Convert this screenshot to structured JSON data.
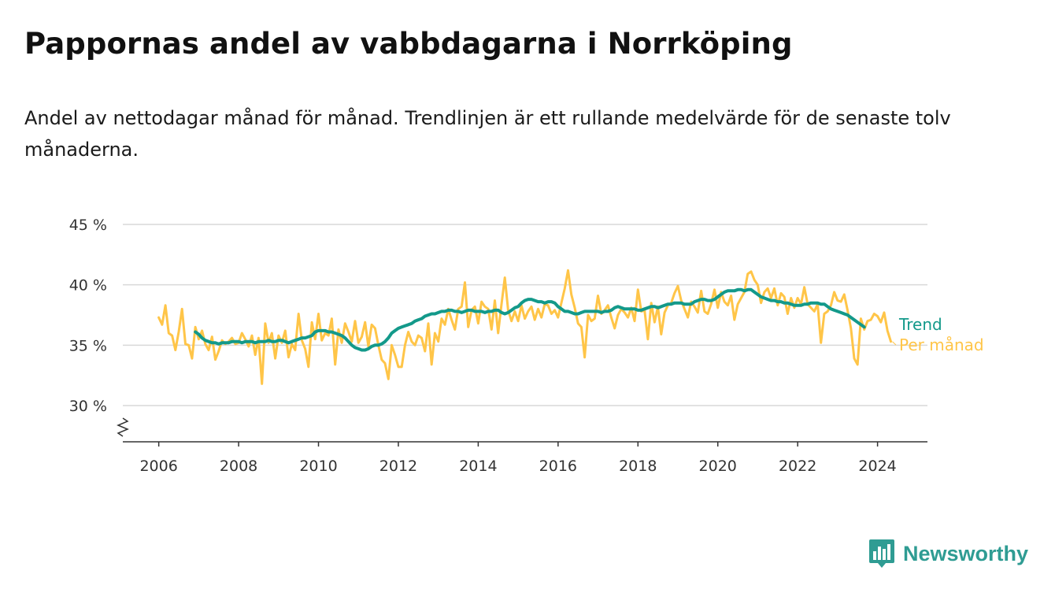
{
  "title": "Pappornas andel av vabbdagarna i Norrköping",
  "subtitle": "Andel av nettodagar månad för månad. Trendlinjen är ett rullande medelvärde för de senaste tolv månaderna.",
  "brand": {
    "name": "Newsworthy",
    "icon": "newsworthy-logo-icon"
  },
  "colors": {
    "trend": "#13998a",
    "monthly": "#ffc548",
    "grid": "#d9d9d9",
    "axis": "#333333"
  },
  "chart_data": {
    "type": "line",
    "title": "Pappornas andel av vabbdagarna i Norrköping",
    "subtitle": "Andel av nettodagar månad för månad. Trendlinjen är ett rullande medelvärde för de senaste tolv månaderna.",
    "xlabel": "",
    "ylabel": "",
    "x_ticks": [
      "2006",
      "2008",
      "2010",
      "2012",
      "2014",
      "2016",
      "2018",
      "2020",
      "2022",
      "2024"
    ],
    "y_ticks": [
      "30 %",
      "35 %",
      "40 %",
      "45 %"
    ],
    "xlim": [
      2005.1,
      2025.25
    ],
    "ylim": [
      27,
      45
    ],
    "y_axis_break": true,
    "grid": "horizontal",
    "legend": "inline-right",
    "series": [
      {
        "name": "Per månad",
        "key": "monthly",
        "x_start": 2006.0,
        "x_step": 0.08333,
        "values": [
          37.3,
          36.7,
          38.3,
          36.0,
          35.8,
          34.6,
          36.1,
          38.0,
          35.1,
          35.0,
          33.9,
          36.5,
          35.5,
          36.2,
          35.1,
          34.6,
          35.7,
          33.8,
          34.5,
          35.4,
          35.1,
          35.3,
          35.6,
          35.1,
          35.2,
          36.0,
          35.5,
          34.9,
          35.8,
          34.2,
          35.6,
          31.8,
          36.8,
          35.2,
          36.0,
          33.9,
          35.8,
          35.2,
          36.2,
          34.0,
          35.1,
          34.6,
          37.6,
          35.4,
          34.7,
          33.2,
          36.9,
          35.5,
          37.6,
          35.4,
          36.0,
          35.8,
          37.2,
          33.4,
          36.3,
          35.2,
          36.8,
          36.1,
          35.3,
          37.0,
          35.2,
          35.7,
          36.9,
          34.9,
          36.7,
          36.4,
          35.0,
          33.8,
          33.5,
          32.2,
          35.0,
          34.2,
          33.2,
          33.2,
          35.0,
          36.1,
          35.3,
          35.0,
          35.8,
          35.6,
          34.5,
          36.8,
          33.4,
          36.0,
          35.3,
          37.2,
          36.7,
          38.0,
          37.1,
          36.3,
          38.0,
          38.2,
          40.2,
          36.5,
          37.9,
          38.2,
          36.8,
          38.6,
          38.2,
          38.0,
          36.3,
          38.7,
          36.0,
          38.4,
          40.6,
          37.9,
          37.0,
          37.8,
          37.0,
          38.3,
          37.2,
          37.8,
          38.2,
          37.1,
          38.0,
          37.3,
          38.4,
          38.3,
          37.6,
          37.9,
          37.3,
          38.5,
          39.7,
          41.2,
          39.2,
          38.1,
          36.8,
          36.5,
          34.0,
          37.5,
          37.0,
          37.2,
          39.1,
          37.6,
          37.9,
          38.3,
          37.3,
          36.4,
          37.5,
          38.0,
          37.7,
          37.3,
          38.1,
          37.0,
          39.6,
          37.8,
          37.9,
          35.5,
          38.5,
          36.9,
          38.2,
          35.9,
          37.7,
          38.3,
          38.5,
          39.3,
          39.9,
          38.7,
          38.0,
          37.3,
          38.6,
          38.2,
          37.7,
          39.5,
          37.8,
          37.6,
          38.4,
          39.6,
          38.1,
          39.4,
          38.6,
          38.3,
          39.1,
          37.1,
          38.4,
          38.9,
          39.4,
          40.9,
          41.1,
          40.4,
          40.0,
          38.5,
          39.4,
          39.7,
          38.9,
          39.7,
          38.3,
          39.3,
          39.0,
          37.6,
          38.9,
          38.1,
          38.9,
          38.4,
          39.8,
          38.4,
          38.1,
          37.8,
          38.4,
          35.2,
          37.6,
          37.8,
          38.3,
          39.4,
          38.7,
          38.6,
          39.2,
          37.9,
          36.4,
          33.9,
          33.4,
          37.2,
          36.3,
          37.0,
          37.1,
          37.6,
          37.4,
          36.9,
          37.7,
          36.2,
          35.3
        ]
      },
      {
        "name": "Trend",
        "key": "trend",
        "x_start": 2006.917,
        "x_step": 0.08333,
        "values": [
          36.1,
          35.9,
          35.6,
          35.4,
          35.3,
          35.2,
          35.2,
          35.1,
          35.2,
          35.2,
          35.2,
          35.3,
          35.3,
          35.3,
          35.2,
          35.3,
          35.3,
          35.3,
          35.2,
          35.3,
          35.3,
          35.3,
          35.4,
          35.3,
          35.3,
          35.4,
          35.4,
          35.3,
          35.2,
          35.3,
          35.4,
          35.5,
          35.6,
          35.6,
          35.7,
          35.8,
          36.1,
          36.2,
          36.2,
          36.2,
          36.1,
          36.1,
          36.0,
          35.9,
          35.8,
          35.6,
          35.3,
          35.0,
          34.8,
          34.7,
          34.6,
          34.6,
          34.7,
          34.9,
          35.0,
          35.0,
          35.1,
          35.3,
          35.6,
          36.0,
          36.2,
          36.4,
          36.5,
          36.6,
          36.7,
          36.8,
          37.0,
          37.1,
          37.2,
          37.4,
          37.5,
          37.6,
          37.6,
          37.7,
          37.8,
          37.8,
          37.9,
          37.9,
          37.8,
          37.8,
          37.7,
          37.8,
          37.9,
          37.9,
          37.8,
          37.8,
          37.8,
          37.7,
          37.8,
          37.8,
          37.9,
          37.9,
          37.7,
          37.6,
          37.7,
          37.9,
          38.1,
          38.2,
          38.5,
          38.7,
          38.8,
          38.8,
          38.7,
          38.6,
          38.6,
          38.5,
          38.6,
          38.6,
          38.5,
          38.2,
          38.0,
          37.8,
          37.8,
          37.7,
          37.6,
          37.6,
          37.7,
          37.8,
          37.8,
          37.8,
          37.8,
          37.8,
          37.7,
          37.8,
          37.8,
          37.9,
          38.1,
          38.2,
          38.1,
          38.0,
          38.0,
          38.0,
          38.0,
          37.9,
          37.9,
          38.0,
          38.1,
          38.2,
          38.2,
          38.1,
          38.2,
          38.3,
          38.4,
          38.4,
          38.5,
          38.5,
          38.5,
          38.4,
          38.4,
          38.4,
          38.6,
          38.7,
          38.8,
          38.8,
          38.7,
          38.7,
          38.8,
          39.0,
          39.2,
          39.4,
          39.5,
          39.5,
          39.5,
          39.6,
          39.6,
          39.5,
          39.6,
          39.6,
          39.4,
          39.2,
          39.0,
          38.9,
          38.8,
          38.7,
          38.7,
          38.6,
          38.6,
          38.5,
          38.5,
          38.4,
          38.3,
          38.3,
          38.3,
          38.4,
          38.4,
          38.5,
          38.5,
          38.5,
          38.4,
          38.4,
          38.2,
          38.0,
          37.9,
          37.8,
          37.7,
          37.6,
          37.5,
          37.3,
          37.1,
          36.9,
          36.7,
          36.5
        ]
      }
    ]
  }
}
